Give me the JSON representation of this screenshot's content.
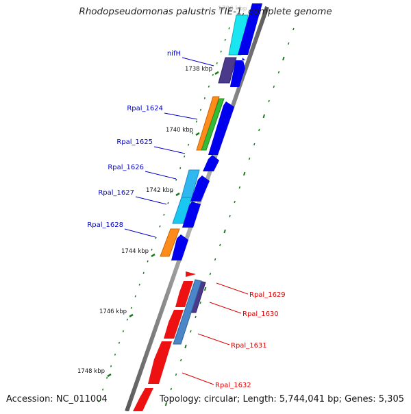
{
  "title": "Rhodopseudomonas palustris TIE-1, complete genome",
  "top_tick_label": "1736 kbp",
  "accession": "Accession: NC_011004",
  "summary": "Topology: circular; Length: 5,744,041 bp; Genes: 5,305",
  "colors": {
    "backbone": "#888888",
    "forward_gene": "#0000ee",
    "tick": "#1a7a1a",
    "label_forward": "#0000cc",
    "label_reverse": "#dd0000",
    "cyan": "#19e6f0",
    "purple": "#4b3a8c",
    "orange": "#ff8c1a",
    "green": "#33bb33",
    "lightblue": "#2fb8f0",
    "red": "#ee1111",
    "steelblue": "#4a86c8"
  },
  "ticks": [
    {
      "label": "1738 kbp"
    },
    {
      "label": "1740 kbp"
    },
    {
      "label": "1742 kbp"
    },
    {
      "label": "1744 kbp"
    },
    {
      "label": "1746 kbp"
    },
    {
      "label": "1748 kbp"
    }
  ],
  "gene_labels": [
    {
      "name": "nifH",
      "strand": "forward"
    },
    {
      "name": "Rpal_1624",
      "strand": "forward"
    },
    {
      "name": "Rpal_1625",
      "strand": "forward"
    },
    {
      "name": "Rpal_1626",
      "strand": "forward"
    },
    {
      "name": "Rpal_1627",
      "strand": "forward"
    },
    {
      "name": "Rpal_1628",
      "strand": "forward"
    },
    {
      "name": "Rpal_1629",
      "strand": "reverse"
    },
    {
      "name": "Rpal_1630",
      "strand": "reverse"
    },
    {
      "name": "Rpal_1631",
      "strand": "reverse"
    },
    {
      "name": "Rpal_1632",
      "strand": "reverse"
    }
  ]
}
